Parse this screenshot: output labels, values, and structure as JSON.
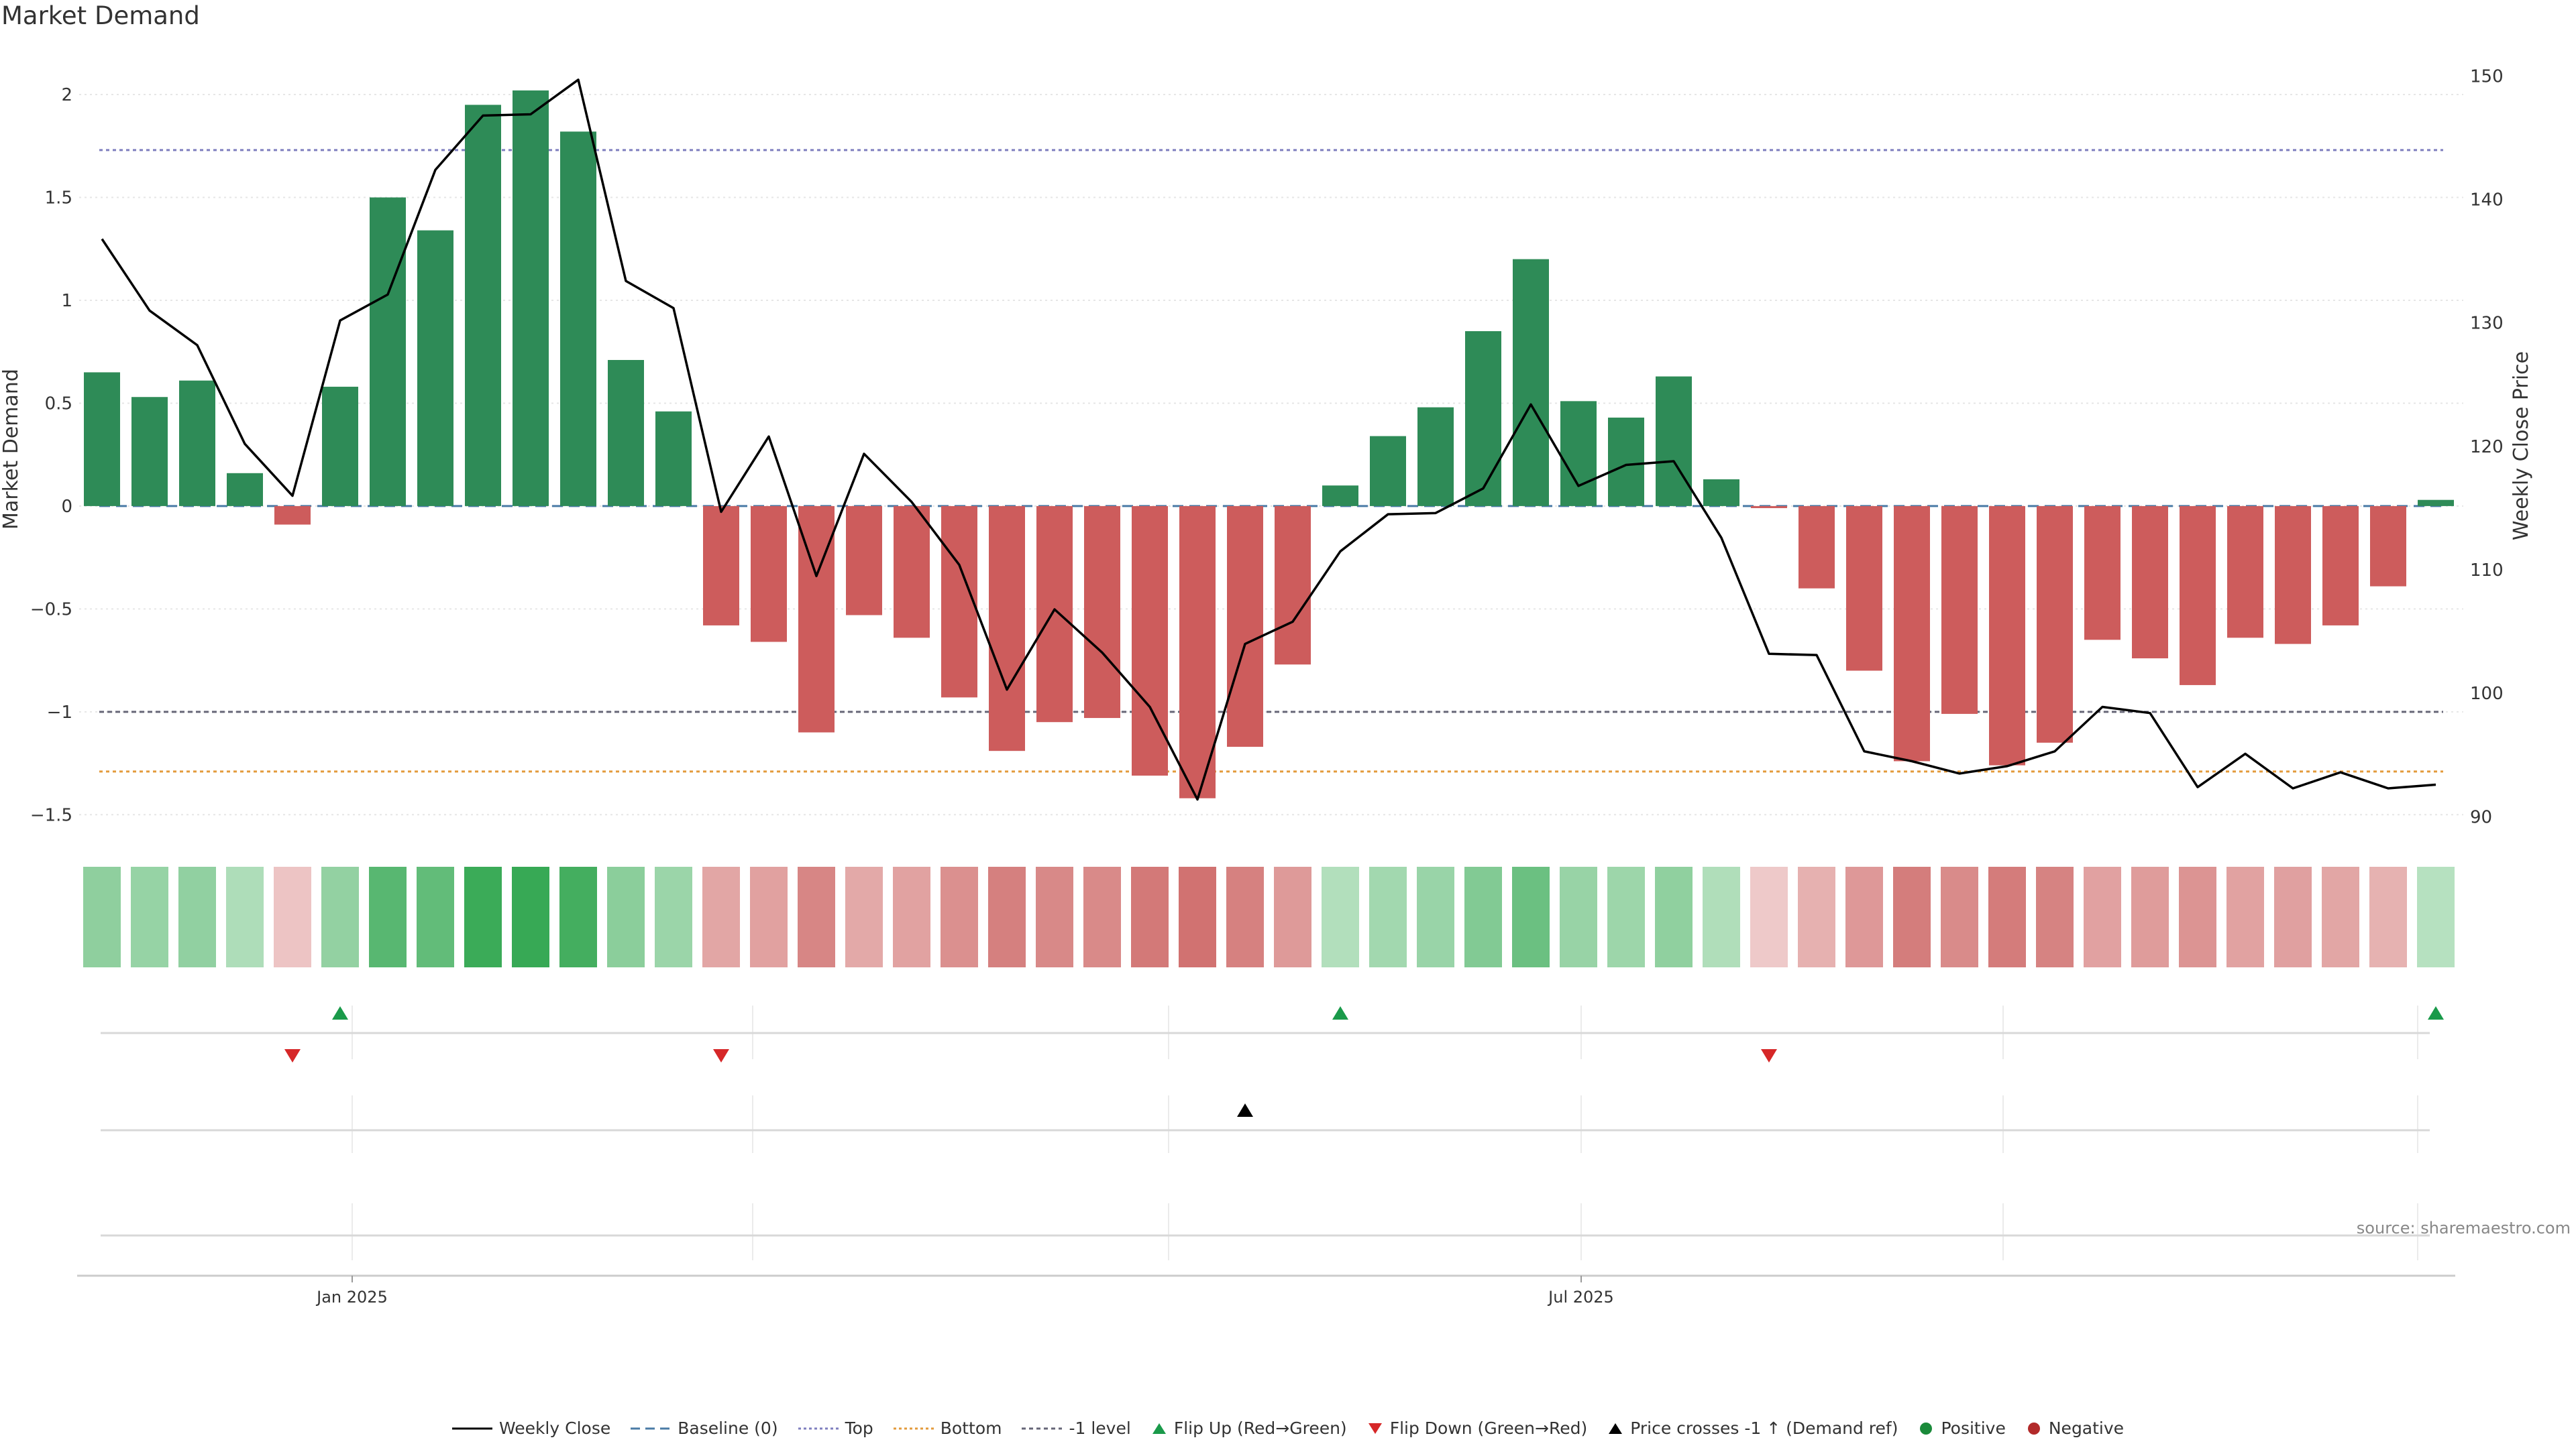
{
  "title": "Market Demand",
  "source_note": "source: sharemaestro.com",
  "colors": {
    "positive": "#2e8b57",
    "negative": "#cd5c5c",
    "price_line": "#000000",
    "baseline": "#4a7ba6",
    "top_line": "#7f7fbf",
    "bottom_line": "#e39b3c",
    "minus_one_line": "#666677",
    "flip_up": "#1a9a4a",
    "flip_down": "#d62728",
    "cross": "#000000"
  },
  "legend": {
    "weekly_close": "Weekly Close",
    "baseline": "Baseline (0)",
    "top": "Top",
    "bottom": "Bottom",
    "minus_one": "-1 level",
    "flip_up": "Flip Up (Red→Green)",
    "flip_down": "Flip Down (Green→Red)",
    "price_cross": "Price crosses -1 ↑ (Demand ref)",
    "positive": "Positive",
    "negative": "Negative"
  },
  "chart_data": {
    "type": "bar",
    "title": "Market Demand",
    "ylabel": "Market Demand",
    "y2label": "Weekly Close Price",
    "ylim": [
      -1.5,
      2.0
    ],
    "y2lim": [
      90,
      150
    ],
    "y_ticks": [
      "2",
      "1.5",
      "1",
      "0.5",
      "0",
      "−0.5",
      "−1",
      "−1.5"
    ],
    "y2_ticks": [
      "150",
      "140",
      "130",
      "120",
      "110",
      "100",
      "90"
    ],
    "x_tick_labels": [
      {
        "label": "Jan 2025",
        "index": 5.4
      },
      {
        "label": "Jul 2025",
        "index": 31.3
      }
    ],
    "reference_lines": {
      "baseline": 0,
      "top": 1.73,
      "bottom": -1.29,
      "minus_one": -1.0
    },
    "series": [
      {
        "name": "Market Demand",
        "values": [
          0.65,
          0.53,
          0.61,
          0.16,
          -0.09,
          0.58,
          1.5,
          1.34,
          1.95,
          2.02,
          1.82,
          0.71,
          0.46,
          -0.58,
          -0.66,
          -1.1,
          -0.53,
          -0.64,
          -0.93,
          -1.19,
          -1.05,
          -1.03,
          -1.31,
          -1.42,
          -1.17,
          -0.77,
          0.1,
          0.34,
          0.48,
          0.85,
          1.2,
          0.51,
          0.43,
          0.63,
          0.13,
          -0.01,
          -0.4,
          -0.8,
          -1.24,
          -1.01,
          -1.26,
          -1.15,
          -0.65,
          -0.74,
          -0.87,
          -0.64,
          -0.67,
          -0.58,
          -0.39,
          0.03
        ]
      },
      {
        "name": "Weekly Close",
        "values": [
          136.8,
          131.0,
          128.2,
          120.2,
          116.0,
          130.2,
          132.3,
          142.4,
          146.8,
          146.9,
          149.7,
          133.4,
          131.2,
          114.7,
          120.8,
          109.5,
          119.4,
          115.5,
          110.4,
          100.3,
          106.8,
          103.3,
          98.9,
          91.4,
          104.0,
          105.8,
          111.5,
          114.5,
          114.6,
          116.6,
          123.4,
          116.8,
          118.5,
          118.8,
          112.6,
          103.2,
          103.1,
          95.3,
          94.5,
          93.5,
          94.1,
          95.3,
          98.9,
          98.4,
          92.4,
          95.1,
          92.3,
          93.6,
          92.3,
          92.6
        ]
      }
    ],
    "strength_strip": [
      0.65,
      0.53,
      0.61,
      0.16,
      -0.09,
      0.58,
      1.5,
      1.34,
      1.95,
      2.02,
      1.82,
      0.71,
      0.46,
      -0.58,
      -0.66,
      -1.1,
      -0.53,
      -0.64,
      -0.93,
      -1.19,
      -1.05,
      -1.03,
      -1.31,
      -1.42,
      -1.17,
      -0.77,
      0.1,
      0.34,
      0.48,
      0.85,
      1.2,
      0.51,
      0.43,
      0.63,
      0.13,
      -0.01,
      -0.4,
      -0.8,
      -1.24,
      -1.01,
      -1.26,
      -1.15,
      -0.65,
      -0.74,
      -0.87,
      -0.64,
      -0.67,
      -0.58,
      -0.39,
      0.03
    ],
    "flip_up_indices": [
      5,
      26,
      49
    ],
    "flip_down_indices": [
      4,
      13,
      35
    ],
    "price_cross_indices": [
      24
    ]
  }
}
